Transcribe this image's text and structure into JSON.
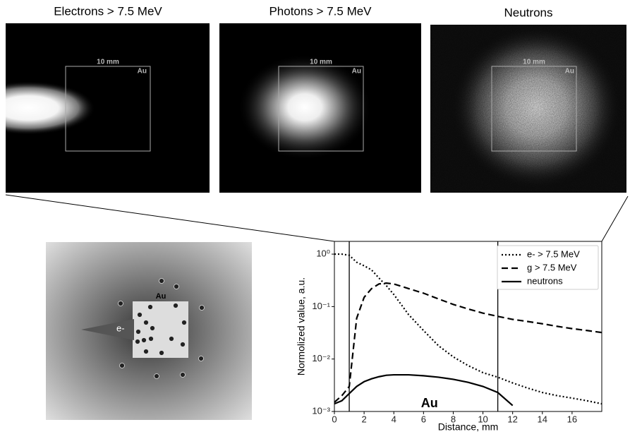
{
  "images": [
    {
      "title": "Electrons > 7.5 MeV",
      "scale": "10 mm",
      "material": "Au"
    },
    {
      "title": "Photons > 7.5 MeV",
      "scale": "10 mm",
      "material": "Au"
    },
    {
      "title": "Neutrons",
      "scale": "10 mm",
      "material": "Au"
    }
  ],
  "schematic": {
    "material": "Au",
    "beam": "e-"
  },
  "chart_data": {
    "type": "line",
    "xlabel": "Distance, mm",
    "ylabel": "Normolized value, a.u.",
    "log_y": true,
    "legend": "upper right",
    "xlim": [
      0,
      18
    ],
    "xticks": [
      0,
      2,
      4,
      6,
      8,
      10,
      12,
      14,
      16
    ],
    "ylim": [
      0.001,
      1.75
    ],
    "yticks": [
      {
        "value": 0.001,
        "label": "10⁻³"
      },
      {
        "value": 0.01,
        "label": "10⁻²"
      },
      {
        "value": 0.1,
        "label": "10⁻¹"
      },
      {
        "value": 1,
        "label": "10⁰"
      }
    ],
    "vlines": [
      1,
      11
    ],
    "annotations": [
      {
        "text": "Au"
      }
    ],
    "x": [
      0,
      0.5,
      1,
      1.5,
      2,
      2.5,
      3,
      3.5,
      4,
      5,
      6,
      7,
      8,
      9,
      10,
      11,
      12,
      13,
      14,
      15,
      16,
      17,
      18
    ],
    "series": [
      {
        "name": "e- > 7.5 MeV",
        "color": "#000000",
        "dash": "dotted",
        "values": [
          1.0,
          1.0,
          0.95,
          0.7,
          0.6,
          0.5,
          0.35,
          0.25,
          0.17,
          0.07,
          0.035,
          0.018,
          0.011,
          0.0075,
          0.0055,
          0.0045,
          0.0035,
          0.0028,
          0.0023,
          0.002,
          0.0018,
          0.0016,
          0.0014
        ]
      },
      {
        "name": "g > 7.5 MeV",
        "color": "#000000",
        "dash": "dashed",
        "values": [
          0.0015,
          0.002,
          0.003,
          0.06,
          0.15,
          0.22,
          0.27,
          0.28,
          0.27,
          0.22,
          0.18,
          0.14,
          0.11,
          0.09,
          0.075,
          0.065,
          0.057,
          0.052,
          0.047,
          0.042,
          0.038,
          0.035,
          0.032
        ]
      },
      {
        "name": "neutrons",
        "color": "#000000",
        "dash": "solid",
        "values": [
          0.0014,
          0.0016,
          0.0022,
          0.003,
          0.0037,
          0.0042,
          0.0046,
          0.0049,
          0.005,
          0.005,
          0.0048,
          0.0045,
          0.0041,
          0.0036,
          0.003,
          0.0023,
          0.0013,
          null,
          null,
          null,
          null,
          null,
          null
        ]
      }
    ]
  }
}
